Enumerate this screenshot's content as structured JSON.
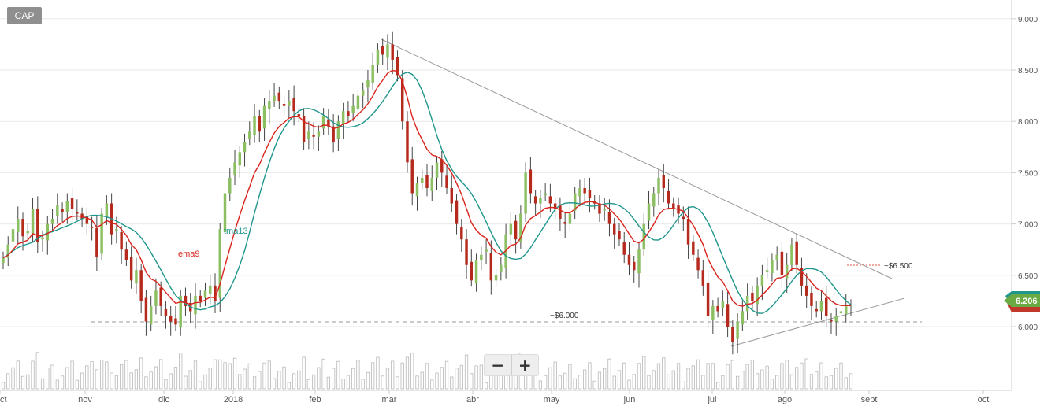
{
  "ticker": "CAP",
  "zoom": {
    "out_label": "−",
    "in_label": "+"
  },
  "colors": {
    "ema": "#d9241c",
    "tma": "#1f968c",
    "up": "#8bbf62",
    "down": "#b52a1c",
    "price_tag": "#6aaa42",
    "grid": "#e9e9e9",
    "line": "#9a9a9a"
  },
  "chart_data": {
    "type": "candlestick",
    "y_ticks": [
      "9.000",
      "8.500",
      "8.000",
      "7.500",
      "7.000",
      "6.500",
      "6.000"
    ],
    "x_ticks": [
      "ct",
      "nov",
      "dic",
      "2018",
      "feb",
      "mar",
      "abr",
      "may",
      "jun",
      "jul",
      "ago",
      "sept",
      "oct"
    ],
    "ylim": [
      5.45,
      9.1
    ],
    "series_labels": {
      "ema": "ema9",
      "tma": "tma13"
    },
    "annotations": {
      "support": "~$6.000",
      "resistance": "~$6.500"
    },
    "last_price": "6.206",
    "closes": [
      6.67,
      6.8,
      6.95,
      7.05,
      6.88,
      6.93,
      7.15,
      6.82,
      6.87,
      7.0,
      7.05,
      7.18,
      7.12,
      7.22,
      7.15,
      7.1,
      7.05,
      7.0,
      6.96,
      6.68,
      7.1,
      7.2,
      6.9,
      6.95,
      6.75,
      6.65,
      6.45,
      6.55,
      6.25,
      6.05,
      6.2,
      6.35,
      6.2,
      6.1,
      6.05,
      6.02,
      6.3,
      6.2,
      6.15,
      6.3,
      6.25,
      6.35,
      6.4,
      6.25,
      6.95,
      7.3,
      7.45,
      7.6,
      7.7,
      7.8,
      7.9,
      8.05,
      7.9,
      8.15,
      8.2,
      8.25,
      8.2,
      8.15,
      8.2,
      8.1,
      8.05,
      7.8,
      7.9,
      7.85,
      7.9,
      8.05,
      7.95,
      7.8,
      8.0,
      8.1,
      8.05,
      8.15,
      8.25,
      8.3,
      8.4,
      8.55,
      8.7,
      8.65,
      8.75,
      8.6,
      8.45,
      8.0,
      7.6,
      7.3,
      7.4,
      7.45,
      7.35,
      7.45,
      7.6,
      7.5,
      7.35,
      7.2,
      7.0,
      6.85,
      6.6,
      6.45,
      6.65,
      6.7,
      6.75,
      6.45,
      6.5,
      6.6,
      6.9,
      7.0,
      6.85,
      7.1,
      7.5,
      7.3,
      7.2,
      7.25,
      7.3,
      7.2,
      7.15,
      7.05,
      7.0,
      7.1,
      7.3,
      7.35,
      7.3,
      7.25,
      7.2,
      7.1,
      7.15,
      7.0,
      6.9,
      6.85,
      6.7,
      6.6,
      6.55,
      6.75,
      7.0,
      7.2,
      7.3,
      7.45,
      7.35,
      7.2,
      7.15,
      7.1,
      7.05,
      6.8,
      6.7,
      6.55,
      6.4,
      6.1,
      6.2,
      6.15,
      6.25,
      6.0,
      5.85,
      6.05,
      6.15,
      6.3,
      6.25,
      6.4,
      6.5,
      6.55,
      6.65,
      6.7,
      6.5,
      6.6,
      6.8,
      6.6,
      6.4,
      6.3,
      6.2,
      6.15,
      6.25,
      6.1,
      6.05,
      6.1,
      6.15,
      6.2,
      6.206
    ]
  }
}
